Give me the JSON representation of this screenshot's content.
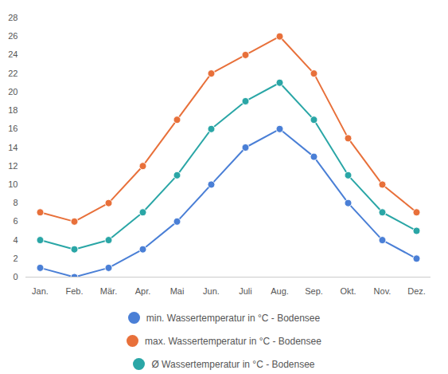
{
  "chart_data": {
    "type": "line",
    "categories": [
      "Jan.",
      "Feb.",
      "Mär.",
      "Apr.",
      "Mai",
      "Jun.",
      "Juli",
      "Aug.",
      "Sep.",
      "Okt.",
      "Nov.",
      "Dez."
    ],
    "series": [
      {
        "name": "min. Wassertemperatur in °C - Bodensee",
        "color": "#4a7fd6",
        "marker": "circle",
        "values": [
          1,
          0,
          1,
          3,
          6,
          10,
          14,
          16,
          13,
          8,
          4,
          2
        ]
      },
      {
        "name": "max. Wassertemperatur in °C - Bodensee",
        "color": "#e8703a",
        "marker": "circle",
        "values": [
          7,
          6,
          8,
          12,
          17,
          22,
          24,
          26,
          22,
          15,
          10,
          7
        ]
      },
      {
        "name": "Ø Wassertemperatur in °C - Bodensee",
        "color": "#2aa6a6",
        "marker": "circle",
        "values": [
          4,
          3,
          4,
          7,
          11,
          16,
          19,
          21,
          17,
          11,
          7,
          5
        ]
      }
    ],
    "ylim": [
      0,
      28
    ],
    "yticks": [
      0,
      2,
      4,
      6,
      8,
      10,
      12,
      14,
      16,
      18,
      20,
      22,
      24,
      26,
      28
    ],
    "grid": false,
    "legend": "bottom"
  }
}
